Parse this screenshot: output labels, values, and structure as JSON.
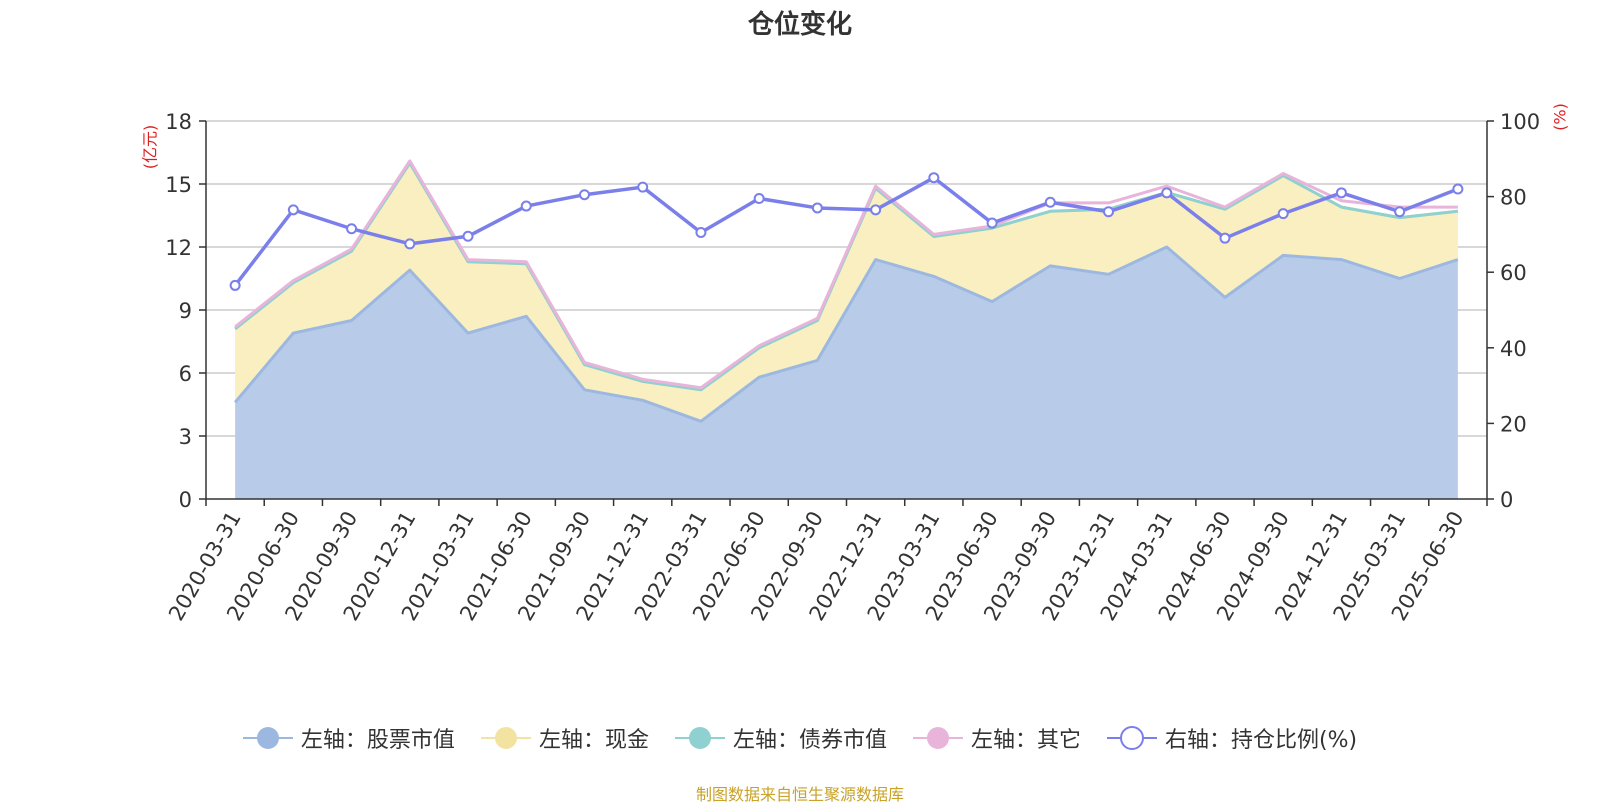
{
  "chart_data": {
    "type": "area",
    "title": "仓位变化",
    "categories": [
      "2020-03-31",
      "2020-06-30",
      "2020-09-30",
      "2020-12-31",
      "2021-03-31",
      "2021-06-30",
      "2021-09-30",
      "2021-12-31",
      "2022-03-31",
      "2022-06-30",
      "2022-09-30",
      "2022-12-31",
      "2023-03-31",
      "2023-06-30",
      "2023-09-30",
      "2023-12-31",
      "2024-03-31",
      "2024-06-30",
      "2024-09-30",
      "2024-12-31",
      "2025-03-31",
      "2025-06-30"
    ],
    "left_axis": {
      "unit": "(亿元)",
      "ylim": [
        0,
        18
      ],
      "ticks": [
        0,
        3,
        6,
        9,
        12,
        15,
        18
      ]
    },
    "right_axis": {
      "unit": "(%)",
      "ylim": [
        0,
        100
      ],
      "ticks": [
        0,
        20,
        40,
        60,
        80,
        100
      ]
    },
    "series": [
      {
        "name": "左轴：股票市值",
        "axis": "left",
        "kind": "area",
        "color": "#9db8e0",
        "fill": "#b8cce9",
        "values": [
          4.6,
          7.9,
          8.5,
          10.9,
          7.9,
          8.7,
          5.2,
          4.7,
          3.7,
          5.8,
          6.6,
          11.4,
          10.6,
          9.4,
          11.1,
          10.7,
          12.0,
          9.6,
          11.6,
          11.4,
          10.5,
          11.4
        ]
      },
      {
        "name": "左轴：现金",
        "axis": "left",
        "kind": "area",
        "color": "#f3e3a0",
        "fill": "#f9efc0",
        "values": [
          3.5,
          2.4,
          3.3,
          5.1,
          3.4,
          2.5,
          1.2,
          0.9,
          1.5,
          1.4,
          1.9,
          3.4,
          1.9,
          3.5,
          2.6,
          3.1,
          2.6,
          4.2,
          3.8,
          2.5,
          2.9,
          2.3
        ]
      },
      {
        "name": "左轴：债券市值",
        "axis": "left",
        "kind": "area",
        "color": "#8fd0d0",
        "fill": "#a8dcdc",
        "values": [
          0,
          0,
          0,
          0,
          0,
          0,
          0,
          0,
          0,
          0,
          0,
          0,
          0,
          0,
          0,
          0,
          0,
          0,
          0,
          0,
          0,
          0
        ]
      },
      {
        "name": "左轴：其它",
        "axis": "left",
        "kind": "area",
        "color": "#e8b4da",
        "fill": "none",
        "values": [
          0.1,
          0.1,
          0.1,
          0.1,
          0.1,
          0.1,
          0.1,
          0.1,
          0.1,
          0.1,
          0.1,
          0.1,
          0.1,
          0.1,
          0.4,
          0.3,
          0.3,
          0.1,
          0.1,
          0.3,
          0.5,
          0.2
        ]
      },
      {
        "name": "右轴：持仓比例(%)",
        "axis": "right",
        "kind": "line",
        "color": "#7a7fea",
        "values": [
          56.5,
          76.5,
          71.5,
          67.5,
          69.5,
          77.5,
          80.5,
          82.5,
          70.5,
          79.5,
          77.0,
          76.5,
          85.0,
          73.0,
          78.5,
          76.0,
          81.0,
          69.0,
          75.5,
          81.0,
          76.0,
          82.0
        ]
      }
    ],
    "legend_position": "bottom",
    "grid": true
  },
  "source_note": "制图数据来自恒生聚源数据库"
}
